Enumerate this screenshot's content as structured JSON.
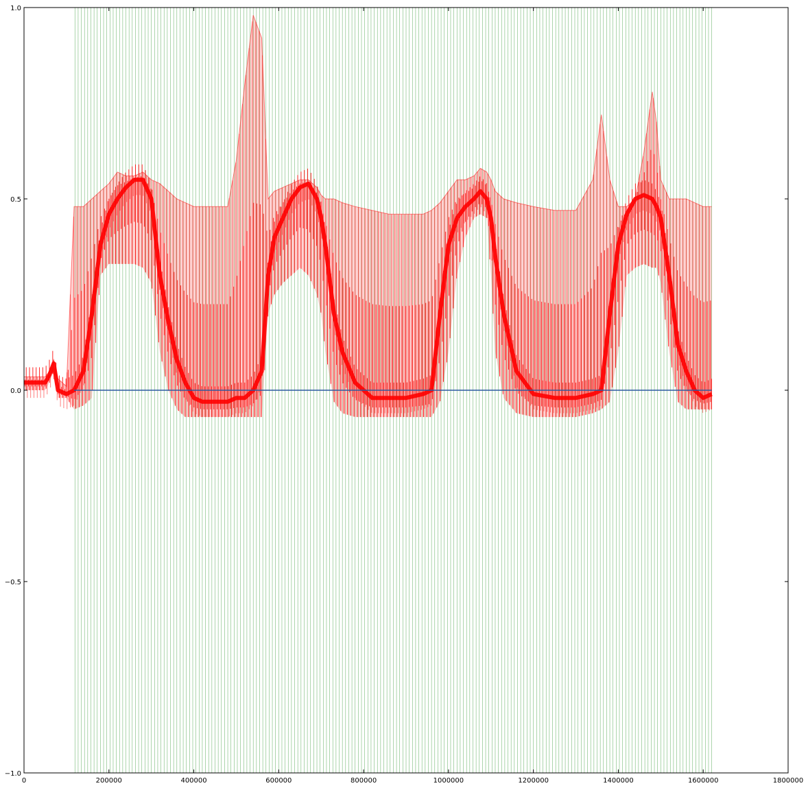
{
  "chart_data": {
    "type": "line",
    "title": "",
    "xlabel": "",
    "ylabel": "",
    "xlim": [
      0,
      1800000
    ],
    "ylim": [
      -1.0,
      1.0
    ],
    "xticks": [
      0,
      200000,
      400000,
      600000,
      800000,
      1000000,
      1200000,
      1400000,
      1600000,
      1800000
    ],
    "xtick_labels": [
      "0",
      "200000",
      "400000",
      "600000",
      "800000",
      "1000000",
      "1200000",
      "1400000",
      "1600000",
      "1800000"
    ],
    "yticks": [
      -1.0,
      -0.5,
      0.0,
      0.5,
      1.0
    ],
    "ytick_labels": [
      "−1.0",
      "−0.5",
      "0.0",
      "0.5",
      "1.0"
    ],
    "grid": false,
    "legend": "none",
    "series": [
      {
        "kind": "vertical-markers",
        "color": "#007f00",
        "x_start": 120000,
        "x_end": 1620000,
        "spacing": 7500,
        "y_range": [
          -1.0,
          1.0
        ]
      },
      {
        "kind": "signal-envelope",
        "color": "#ff0000",
        "x": [
          0,
          50000,
          60000,
          70000,
          80000,
          100000,
          118000,
          140000,
          160000,
          180000,
          200000,
          220000,
          240000,
          260000,
          280000,
          300000,
          320000,
          340000,
          360000,
          380000,
          400000,
          420000,
          440000,
          460000,
          480000,
          500000,
          520000,
          540000,
          560000,
          575000,
          590000,
          610000,
          630000,
          650000,
          670000,
          690000,
          700000,
          710000,
          730000,
          750000,
          780000,
          820000,
          860000,
          900000,
          940000,
          960000,
          980000,
          1000000,
          1020000,
          1040000,
          1060000,
          1075000,
          1090000,
          1100000,
          1110000,
          1130000,
          1160000,
          1200000,
          1250000,
          1300000,
          1340000,
          1360000,
          1380000,
          1400000,
          1420000,
          1440000,
          1460000,
          1480000,
          1490000,
          1500000,
          1520000,
          1540000,
          1560000,
          1580000,
          1600000,
          1620000
        ],
        "upper": [
          0.035,
          0.035,
          0.05,
          0.08,
          0.03,
          0.01,
          0.48,
          0.48,
          0.5,
          0.52,
          0.54,
          0.57,
          0.56,
          0.56,
          0.57,
          0.55,
          0.54,
          0.52,
          0.5,
          0.49,
          0.48,
          0.48,
          0.48,
          0.48,
          0.48,
          0.6,
          0.8,
          0.98,
          0.92,
          0.5,
          0.52,
          0.53,
          0.54,
          0.55,
          0.55,
          0.53,
          0.51,
          0.5,
          0.5,
          0.49,
          0.48,
          0.47,
          0.46,
          0.46,
          0.46,
          0.47,
          0.49,
          0.52,
          0.55,
          0.55,
          0.56,
          0.58,
          0.57,
          0.55,
          0.52,
          0.5,
          0.49,
          0.48,
          0.47,
          0.47,
          0.55,
          0.72,
          0.55,
          0.48,
          0.48,
          0.5,
          0.62,
          0.78,
          0.7,
          0.55,
          0.5,
          0.5,
          0.5,
          0.49,
          0.48,
          0.48
        ],
        "mean": [
          0.02,
          0.02,
          0.04,
          0.07,
          0.0,
          -0.01,
          0.0,
          0.05,
          0.2,
          0.38,
          0.46,
          0.5,
          0.53,
          0.55,
          0.55,
          0.5,
          0.3,
          0.18,
          0.08,
          0.02,
          -0.02,
          -0.03,
          -0.03,
          -0.03,
          -0.03,
          -0.02,
          -0.02,
          0.0,
          0.05,
          0.3,
          0.4,
          0.45,
          0.5,
          0.53,
          0.54,
          0.5,
          0.45,
          0.38,
          0.2,
          0.1,
          0.02,
          -0.02,
          -0.02,
          -0.02,
          -0.01,
          0.0,
          0.2,
          0.38,
          0.45,
          0.48,
          0.5,
          0.52,
          0.5,
          0.45,
          0.35,
          0.2,
          0.05,
          -0.01,
          -0.02,
          -0.02,
          -0.01,
          0.0,
          0.2,
          0.38,
          0.46,
          0.5,
          0.51,
          0.5,
          0.48,
          0.45,
          0.3,
          0.12,
          0.05,
          0.0,
          -0.02,
          -0.01
        ],
        "lower": [
          0.0,
          0.0,
          0.02,
          0.05,
          -0.02,
          -0.02,
          -0.05,
          -0.04,
          -0.02,
          0.3,
          0.33,
          0.33,
          0.33,
          0.33,
          0.32,
          0.28,
          0.1,
          0.0,
          -0.05,
          -0.07,
          -0.07,
          -0.07,
          -0.07,
          -0.07,
          -0.07,
          -0.07,
          -0.07,
          -0.07,
          -0.07,
          0.2,
          0.25,
          0.28,
          0.3,
          0.32,
          0.3,
          0.25,
          0.2,
          0.1,
          -0.03,
          -0.06,
          -0.07,
          -0.07,
          -0.07,
          -0.07,
          -0.07,
          -0.07,
          -0.03,
          0.1,
          0.3,
          0.4,
          0.45,
          0.46,
          0.45,
          0.3,
          0.1,
          -0.02,
          -0.06,
          -0.07,
          -0.07,
          -0.07,
          -0.06,
          -0.05,
          -0.03,
          0.1,
          0.3,
          0.32,
          0.33,
          0.32,
          0.32,
          0.28,
          0.1,
          -0.03,
          -0.05,
          -0.05,
          -0.05,
          -0.05
        ]
      },
      {
        "kind": "line",
        "color": "#2c5aa0",
        "x": [
          118000,
          1620000
        ],
        "values": [
          0.0,
          0.0
        ]
      }
    ]
  }
}
